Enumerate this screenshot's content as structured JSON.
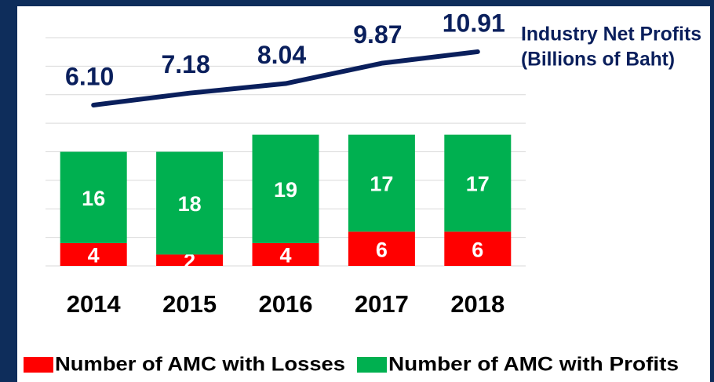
{
  "chart_data": {
    "type": "bar",
    "stacked": true,
    "categories": [
      "2014",
      "2015",
      "2016",
      "2017",
      "2018"
    ],
    "series": [
      {
        "name": "Number of AMC with Losses",
        "color": "#ff0000",
        "values": [
          4,
          2,
          4,
          6,
          6
        ]
      },
      {
        "name": "Number of AMC with Profits",
        "color": "#00b050",
        "values": [
          16,
          18,
          19,
          17,
          17
        ]
      },
      {
        "name": "Industry Net Profits",
        "type": "line",
        "axis": "y2",
        "color": "#0a1f5c",
        "values": [
          6.1,
          7.18,
          8.04,
          9.87,
          10.91
        ],
        "value_labels": [
          "6.10",
          "7.18",
          "8.04",
          "9.87",
          "10.91"
        ]
      }
    ],
    "annotation": "(Billions of Baht)",
    "ylim": [
      0,
      40
    ],
    "yticks": [
      0,
      5,
      10,
      15,
      20,
      25,
      30,
      35,
      40
    ],
    "grid": true,
    "y2lim": [
      -8.4,
      12.18
    ],
    "legend": "bottom"
  }
}
